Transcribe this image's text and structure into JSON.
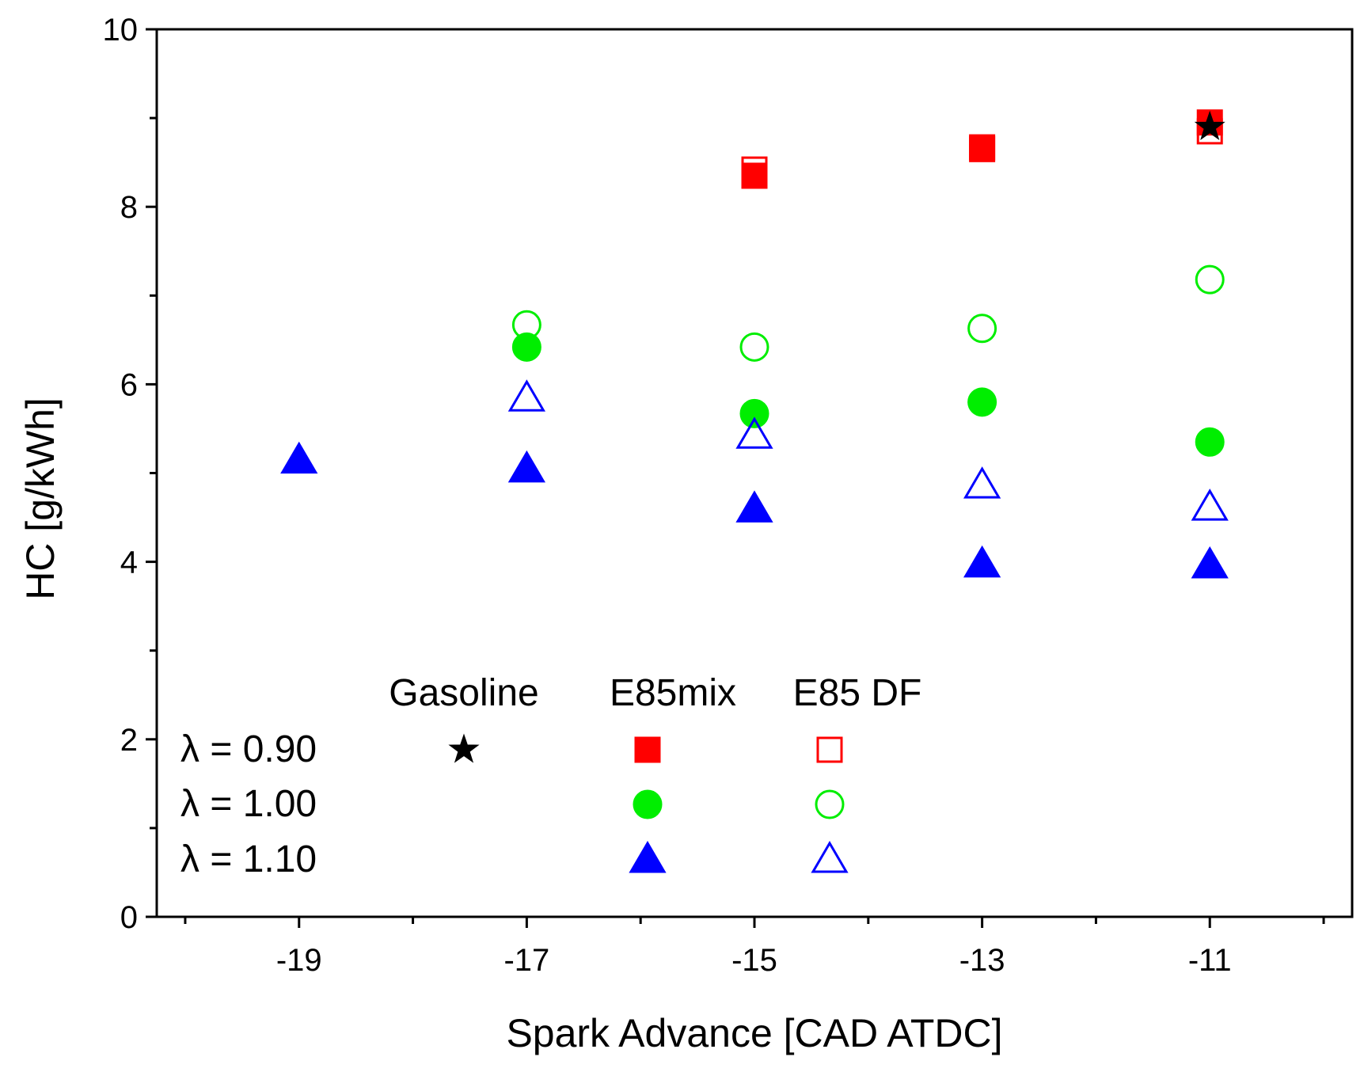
{
  "chart_data": {
    "type": "scatter",
    "title": "",
    "xlabel": "Spark Advance [CAD ATDC]",
    "ylabel": "HC [g/kWh]",
    "xlim": [
      -20.25,
      -9.75
    ],
    "ylim": [
      0,
      10
    ],
    "xticks": [
      -19,
      -17,
      -15,
      -13,
      -11
    ],
    "xtick_labels": [
      "-19",
      "-17",
      "-15",
      "-13",
      "-11"
    ],
    "yticks": [
      0,
      2,
      4,
      6,
      8,
      10
    ],
    "ytick_labels": [
      "0",
      "2",
      "4",
      "6",
      "8",
      "10"
    ],
    "grid": false,
    "series": [
      {
        "name": "Gasoline λ = 0.90",
        "fuel": "Gasoline",
        "lambda": "0.90",
        "marker": "star",
        "filled": true,
        "color": "#000000",
        "points": [
          {
            "x": -11,
            "y": 8.9
          }
        ]
      },
      {
        "name": "E85mix λ = 0.90",
        "fuel": "E85mix",
        "lambda": "0.90",
        "marker": "square",
        "filled": true,
        "color": "#ff0000",
        "points": [
          {
            "x": -15,
            "y": 8.35
          },
          {
            "x": -13,
            "y": 8.67
          },
          {
            "x": -11,
            "y": 8.95
          }
        ]
      },
      {
        "name": "E85 DF λ = 0.90",
        "fuel": "E85 DF",
        "lambda": "0.90",
        "marker": "square",
        "filled": false,
        "color": "#ff0000",
        "points": [
          {
            "x": -15,
            "y": 8.42
          },
          {
            "x": -13,
            "y": 8.65
          },
          {
            "x": -11,
            "y": 8.85
          }
        ]
      },
      {
        "name": "E85mix λ = 1.00",
        "fuel": "E85mix",
        "lambda": "1.00",
        "marker": "circle",
        "filled": true,
        "color": "#00ee00",
        "points": [
          {
            "x": -17,
            "y": 6.42
          },
          {
            "x": -15,
            "y": 5.67
          },
          {
            "x": -13,
            "y": 5.8
          },
          {
            "x": -11,
            "y": 5.35
          }
        ]
      },
      {
        "name": "E85 DF λ = 1.00",
        "fuel": "E85 DF",
        "lambda": "1.00",
        "marker": "circle",
        "filled": false,
        "color": "#00ee00",
        "points": [
          {
            "x": -17,
            "y": 6.67
          },
          {
            "x": -15,
            "y": 6.42
          },
          {
            "x": -13,
            "y": 6.63
          },
          {
            "x": -11,
            "y": 7.18
          }
        ]
      },
      {
        "name": "E85mix λ = 1.10",
        "fuel": "E85mix",
        "lambda": "1.10",
        "marker": "triangle",
        "filled": true,
        "color": "#0000ff",
        "points": [
          {
            "x": -19,
            "y": 5.15
          },
          {
            "x": -17,
            "y": 5.05
          },
          {
            "x": -15,
            "y": 4.6
          },
          {
            "x": -13,
            "y": 3.98
          },
          {
            "x": -11,
            "y": 3.97
          }
        ]
      },
      {
        "name": "E85 DF λ = 1.10",
        "fuel": "E85 DF",
        "lambda": "1.10",
        "marker": "triangle",
        "filled": false,
        "color": "#0000ff",
        "points": [
          {
            "x": -17,
            "y": 5.85
          },
          {
            "x": -15,
            "y": 5.43
          },
          {
            "x": -13,
            "y": 4.87
          },
          {
            "x": -11,
            "y": 4.62
          }
        ]
      }
    ],
    "legend": {
      "placement": "bottom-left",
      "headers": [
        "Gasoline",
        "E85mix",
        "E85 DF"
      ],
      "rows": [
        "λ = 0.90",
        "λ = 1.00",
        "λ = 1.10"
      ]
    }
  }
}
